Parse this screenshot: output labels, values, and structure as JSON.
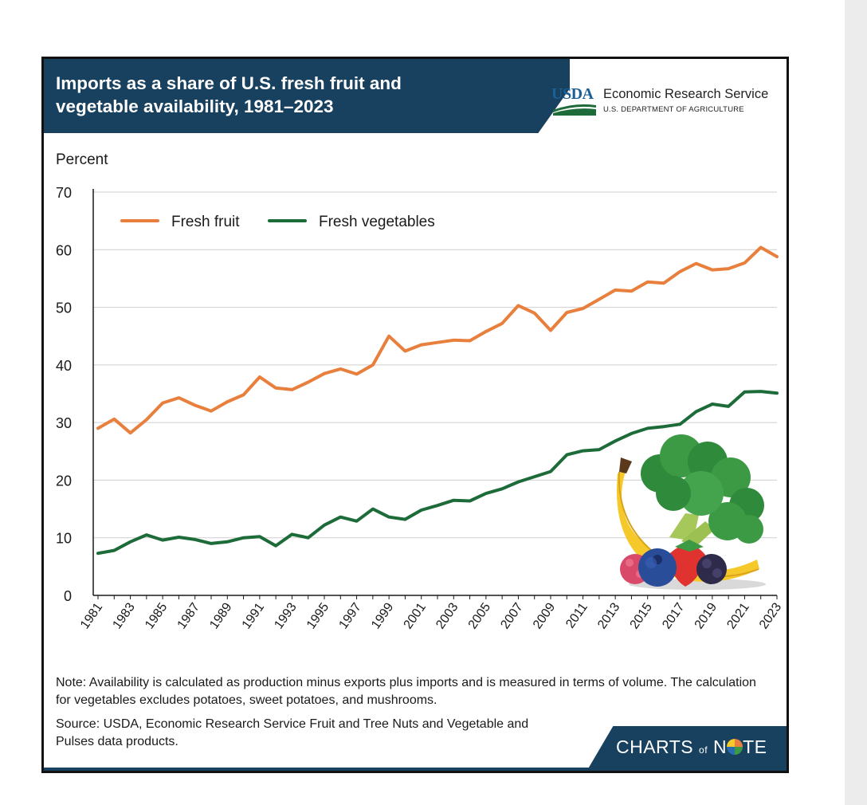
{
  "title_line1": "Imports as a share of U.S. fresh fruit and",
  "title_line2": "vegetable availability, 1981–2023",
  "logo": {
    "usda": "USDA",
    "agency": "Economic Research Service",
    "department": "U.S. DEPARTMENT OF AGRICULTURE"
  },
  "note": "Note: Availability is calculated as production minus exports plus imports and is measured in terms of volume. The calculation for vegetables excludes potatoes, sweet potatoes, and mushrooms.",
  "source": "Source: USDA, Economic Research Service Fruit and Tree Nuts and Vegetable and Pulses data products.",
  "footer_brand": {
    "part1": "CHARTS",
    "part2": "of",
    "part3": "N",
    "part4": "TE"
  },
  "colors": {
    "fruit": "#e87f3c",
    "vegetables": "#1c6b38",
    "navy": "#18415f"
  },
  "chart_data": {
    "type": "line",
    "title": "Imports as a share of U.S. fresh fruit and vegetable availability, 1981–2023",
    "ylabel": "Percent",
    "xlabel": "",
    "ylim": [
      0,
      70
    ],
    "yticks": [
      0,
      10,
      20,
      30,
      40,
      50,
      60,
      70
    ],
    "xticks": [
      "1981",
      "1983",
      "1985",
      "1987",
      "1989",
      "1991",
      "1993",
      "1995",
      "1997",
      "1999",
      "2001",
      "2003",
      "2005",
      "2007",
      "2009",
      "2011",
      "2013",
      "2015",
      "2017",
      "2019",
      "2021",
      "2023"
    ],
    "grid": true,
    "legend": "top-left",
    "x": [
      1981,
      1982,
      1983,
      1984,
      1985,
      1986,
      1987,
      1988,
      1989,
      1990,
      1991,
      1992,
      1993,
      1994,
      1995,
      1996,
      1997,
      1998,
      1999,
      2000,
      2001,
      2002,
      2003,
      2004,
      2005,
      2006,
      2007,
      2008,
      2009,
      2010,
      2011,
      2012,
      2013,
      2014,
      2015,
      2016,
      2017,
      2018,
      2019,
      2020,
      2021,
      2022,
      2023
    ],
    "series": [
      {
        "name": "Fresh fruit",
        "values": [
          29.0,
          30.6,
          28.2,
          30.5,
          33.4,
          34.3,
          33.0,
          32.0,
          33.6,
          34.8,
          37.9,
          36.0,
          35.7,
          37.0,
          38.5,
          39.3,
          38.4,
          40.0,
          45.0,
          42.4,
          43.5,
          43.9,
          44.3,
          44.2,
          45.8,
          47.2,
          50.3,
          49.0,
          46.0,
          49.1,
          49.8,
          51.4,
          53.0,
          52.8,
          54.4,
          54.2,
          56.2,
          57.6,
          56.5,
          56.7,
          57.7,
          60.4,
          58.8
        ]
      },
      {
        "name": "Fresh vegetables",
        "values": [
          7.3,
          7.8,
          9.3,
          10.5,
          9.6,
          10.1,
          9.7,
          9.0,
          9.3,
          10.0,
          10.2,
          8.6,
          10.6,
          10.0,
          12.2,
          13.6,
          12.9,
          15.0,
          13.6,
          13.2,
          14.8,
          15.6,
          16.5,
          16.4,
          17.7,
          18.5,
          19.7,
          20.6,
          21.5,
          24.4,
          25.1,
          25.3,
          26.8,
          28.1,
          29.0,
          29.3,
          29.7,
          31.9,
          33.2,
          32.8,
          35.3,
          35.4,
          35.1
        ]
      }
    ]
  }
}
